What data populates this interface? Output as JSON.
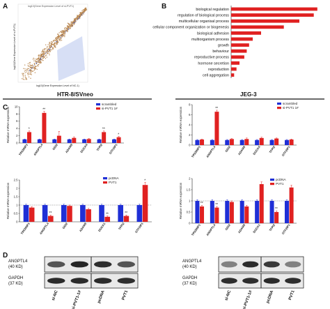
{
  "figure": {
    "panel_labels": [
      "A",
      "B",
      "C",
      "D"
    ],
    "header_left": "HTR-8/SVneo",
    "header_right": "JEG-3",
    "colors": {
      "blue": "#1f2fd6",
      "red": "#e02121",
      "scatter": "#b8864f",
      "selection": "#c9d4f2",
      "black": "#111111"
    }
  },
  "panel_a": {
    "title": "log10(Gene Expression Level of si-PVT1)",
    "ylabel": "log10(Gene Expression Level of si-PVT1)",
    "xlabel": "log10(Gene Expression Level of NC-1)"
  },
  "panel_b": {
    "terms": [
      {
        "label": "biological regulation",
        "value": 72
      },
      {
        "label": "regulation of biological process",
        "value": 69
      },
      {
        "label": "multicellular organisal process",
        "value": 57
      },
      {
        "label": "cellular component organization or biogenesis",
        "value": 44
      },
      {
        "label": "biological adhesion",
        "value": 25
      },
      {
        "label": "multiorganism process",
        "value": 18
      },
      {
        "label": "growth",
        "value": 15
      },
      {
        "label": "behaviour",
        "value": 13
      },
      {
        "label": "reproductive process",
        "value": 11
      },
      {
        "label": "hormone secretion",
        "value": 7
      },
      {
        "label": "reproduction",
        "value": 4.5
      },
      {
        "label": "cell aggregation",
        "value": 2.5
      }
    ]
  },
  "panel_d": {
    "rows": [
      {
        "name": "ANGPTL4",
        "size": "(40 KD)"
      },
      {
        "name": "GAPDH",
        "size": "(37 KD)"
      }
    ],
    "left_lanes": [
      "si-NC",
      "si-PVT1-1#",
      "pcDNA",
      "PVT1"
    ],
    "right_lanes": [
      "si-NC",
      "si-PVT1-1#",
      "pcDNA",
      "PVT1"
    ],
    "left_band_intensity": {
      "angptl4": [
        0.72,
        0.95,
        0.9,
        0.72
      ],
      "gapdh": [
        0.92,
        0.92,
        0.92,
        0.9
      ]
    },
    "right_band_intensity": {
      "angptl4": [
        0.5,
        0.92,
        0.85,
        0.5
      ],
      "gapdh": [
        0.9,
        0.9,
        0.92,
        0.9
      ]
    }
  },
  "chart_data": [
    {
      "type": "bar",
      "id": "C1",
      "ylabel": "Relative mRNA expression",
      "categories": [
        "TP53INP1",
        "ANGPTL4",
        "GDI2",
        "ADAM9",
        "DOCK4",
        "TFPI2",
        "GTF2IP1"
      ],
      "ylim": [
        0,
        10
      ],
      "yticks": [
        0,
        2,
        4,
        6,
        8,
        10
      ],
      "series": [
        {
          "name": "scrambled",
          "values": [
            1,
            1,
            1,
            1,
            1,
            1,
            1
          ],
          "errors": [
            0.1,
            0.1,
            0.1,
            0.1,
            0.1,
            0.1,
            0.1
          ]
        },
        {
          "name": "si-PVT1 1#",
          "values": [
            3,
            8.3,
            2,
            1.4,
            1.1,
            3,
            1.6
          ],
          "errors": [
            0.3,
            0.4,
            1.2,
            0.3,
            0.15,
            0.3,
            0.2
          ]
        }
      ],
      "significance": [
        "*",
        "**",
        "",
        "",
        "",
        "**",
        "*"
      ]
    },
    {
      "type": "bar",
      "id": "C2",
      "ylabel": "Relative mRNA expression",
      "categories": [
        "TP53INP1",
        "ANGPTL4",
        "GDI2",
        "ADAM9",
        "DOCK1",
        "TFPI2",
        "GTF2IP1"
      ],
      "ylim": [
        0,
        2.5
      ],
      "yticks": [
        0,
        0.5,
        1.0,
        1.5,
        2.0,
        2.5
      ],
      "series": [
        {
          "name": "pcDNA",
          "values": [
            1,
            1,
            1,
            1,
            1,
            1,
            1
          ],
          "errors": [
            0.05,
            0.05,
            0.05,
            0.05,
            0.05,
            0.05,
            0.05
          ]
        },
        {
          "name": "PVT1",
          "values": [
            0.85,
            0.35,
            0.95,
            0.75,
            0.3,
            0.35,
            2.2
          ],
          "errors": [
            0.05,
            0.05,
            0.05,
            0.05,
            0.05,
            0.05,
            0.15
          ]
        }
      ],
      "significance": [
        "",
        "**",
        "",
        "",
        "**",
        "**",
        "*"
      ]
    },
    {
      "type": "bar",
      "id": "C3",
      "ylabel": "Relative mRNA expression",
      "categories": [
        "TP53INP1",
        "ANGPTL4",
        "GDI2",
        "ADAM9",
        "DOCK4",
        "TFPI2",
        "GTF2IP1"
      ],
      "ylim": [
        0,
        8
      ],
      "yticks": [
        0,
        2,
        4,
        6,
        8
      ],
      "series": [
        {
          "name": "scrambled",
          "values": [
            1,
            1,
            1,
            1,
            1,
            1,
            1
          ],
          "errors": [
            0.1,
            0.1,
            0.1,
            0.1,
            0.1,
            0.1,
            0.1
          ]
        },
        {
          "name": "si-PVT1 1#",
          "values": [
            1.1,
            6.6,
            1.2,
            1.2,
            1.4,
            1.3,
            1.1
          ],
          "errors": [
            0.1,
            0.3,
            0.1,
            0.2,
            0.15,
            0.1,
            0.1
          ]
        }
      ],
      "significance": [
        "",
        "**",
        "",
        "",
        "",
        "",
        ""
      ]
    },
    {
      "type": "bar",
      "id": "C4",
      "ylabel": "Relative mRNA expression",
      "categories": [
        "TP53INP1",
        "ANGPTL4",
        "GDI2",
        "ADAM9",
        "DOCK1",
        "TFPI2",
        "GTF2IP1"
      ],
      "ylim": [
        0,
        2.0
      ],
      "yticks": [
        0,
        0.5,
        1.0,
        1.5,
        2.0
      ],
      "series": [
        {
          "name": "pcDNA",
          "values": [
            1,
            1,
            1,
            1,
            1,
            1,
            1
          ],
          "errors": [
            0.05,
            0.05,
            0.05,
            0.05,
            0.05,
            0.05,
            0.05
          ]
        },
        {
          "name": "PVT1",
          "values": [
            0.75,
            0.7,
            0.95,
            0.75,
            1.75,
            0.5,
            1.6
          ],
          "errors": [
            0.05,
            0.05,
            0.05,
            0.05,
            0.1,
            0.05,
            0.1
          ]
        }
      ],
      "significance": [
        "**",
        "**",
        "",
        "",
        "",
        "**",
        ""
      ]
    }
  ]
}
